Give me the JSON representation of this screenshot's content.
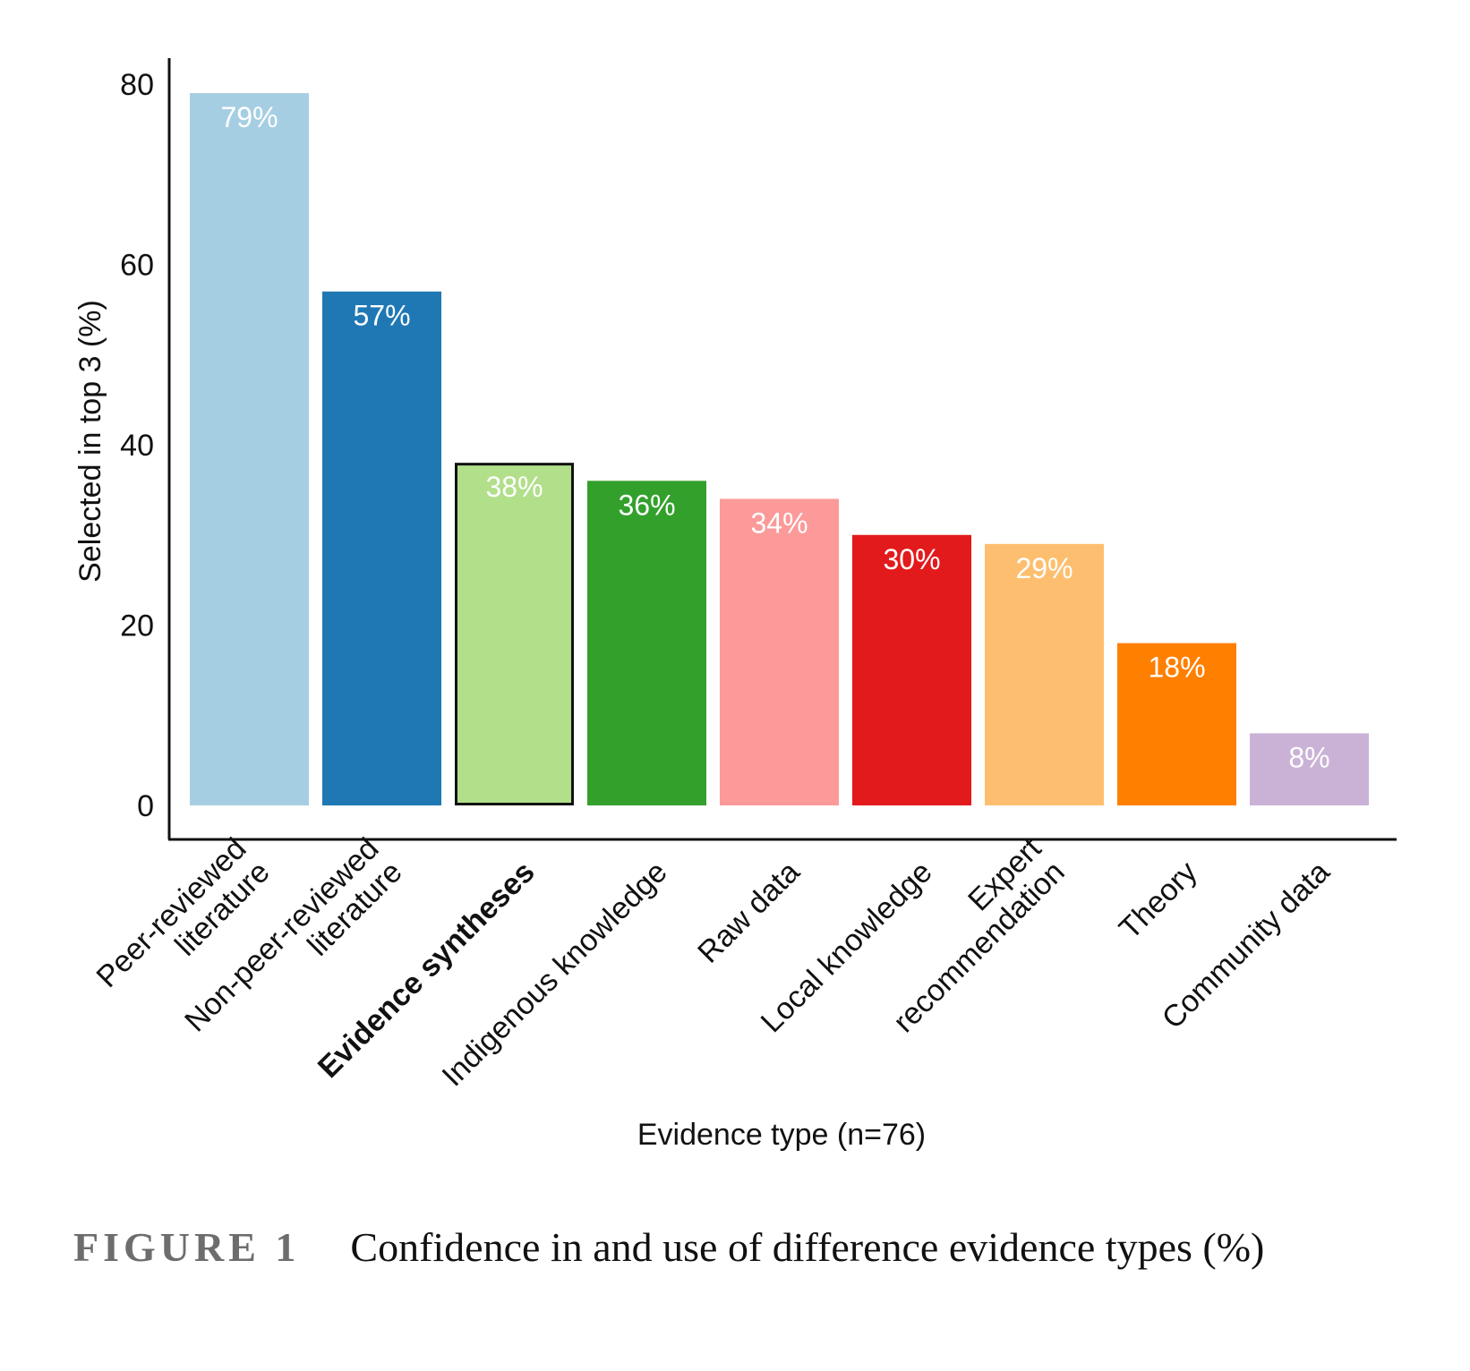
{
  "chart_data": {
    "type": "bar",
    "categories": [
      "Peer-reviewed literature",
      "Non-peer-reviewed literature",
      "Evidence syntheses",
      "Indigenous knowledge",
      "Raw data",
      "Local knowledge",
      "Expert recommendation",
      "Theory",
      "Community data"
    ],
    "category_lines": [
      [
        "Peer-reviewed",
        "literature"
      ],
      [
        "Non-peer-reviewed",
        "literature"
      ],
      [
        "Evidence syntheses"
      ],
      [
        "Indigenous knowledge"
      ],
      [
        "Raw data"
      ],
      [
        "Local knowledge"
      ],
      [
        "Expert",
        "recommendation"
      ],
      [
        "Theory"
      ],
      [
        "Community data"
      ]
    ],
    "values": [
      79,
      57,
      38,
      36,
      34,
      30,
      29,
      18,
      8
    ],
    "data_labels": [
      "79%",
      "57%",
      "38%",
      "36%",
      "34%",
      "30%",
      "29%",
      "18%",
      "8%"
    ],
    "colors": [
      "#a6cee3",
      "#1f78b4",
      "#b2df8a",
      "#33a02c",
      "#fb9a99",
      "#e31a1c",
      "#fdbf6f",
      "#ff7f00",
      "#cab2d6"
    ],
    "highlighted_category": "Evidence syntheses",
    "xlabel": "Evidence type (n=76)",
    "ylabel": "Selected in top 3 (%)",
    "ylim": [
      0,
      80
    ],
    "yticks": [
      0,
      20,
      40,
      60,
      80
    ],
    "grid": false,
    "legend": "none"
  },
  "caption": {
    "label": "FIGURE 1",
    "text": "Confidence in and use of difference evidence types (%)"
  }
}
